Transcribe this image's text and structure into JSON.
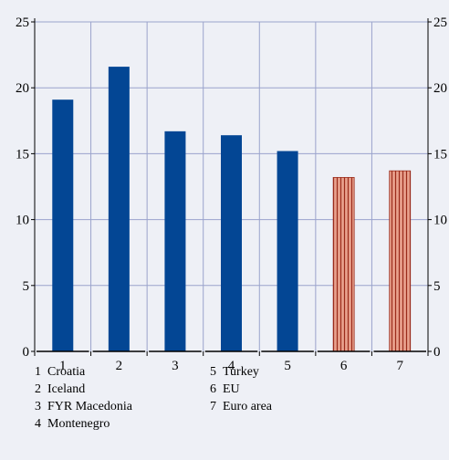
{
  "chart_data": {
    "type": "bar",
    "categories": [
      "1",
      "2",
      "3",
      "4",
      "5",
      "6",
      "7"
    ],
    "values": [
      19.1,
      21.6,
      16.7,
      16.4,
      15.2,
      13.2,
      13.7
    ],
    "ylim": [
      0,
      25
    ],
    "yticks": [
      "0",
      "5",
      "10",
      "15",
      "20",
      "25"
    ],
    "ytick_values": [
      0,
      5,
      10,
      15,
      20,
      25
    ],
    "grid": true,
    "bar_styles": [
      "solid",
      "solid",
      "solid",
      "solid",
      "solid",
      "hatched",
      "hatched"
    ],
    "colors": {
      "solid_bar": "#034694",
      "hatched_bar_fill": "#e8a08c",
      "hatched_bar_stroke": "#9a2a1a",
      "gridline": "#9aa3cc",
      "background": "#eef0f6"
    },
    "legend": [
      {
        "num": "1",
        "label": "Croatia"
      },
      {
        "num": "2",
        "label": "Iceland"
      },
      {
        "num": "3",
        "label": "FYR Macedonia"
      },
      {
        "num": "4",
        "label": "Montenegro"
      },
      {
        "num": "5",
        "label": "Turkey"
      },
      {
        "num": "6",
        "label": "EU"
      },
      {
        "num": "7",
        "label": "Euro area"
      }
    ]
  }
}
